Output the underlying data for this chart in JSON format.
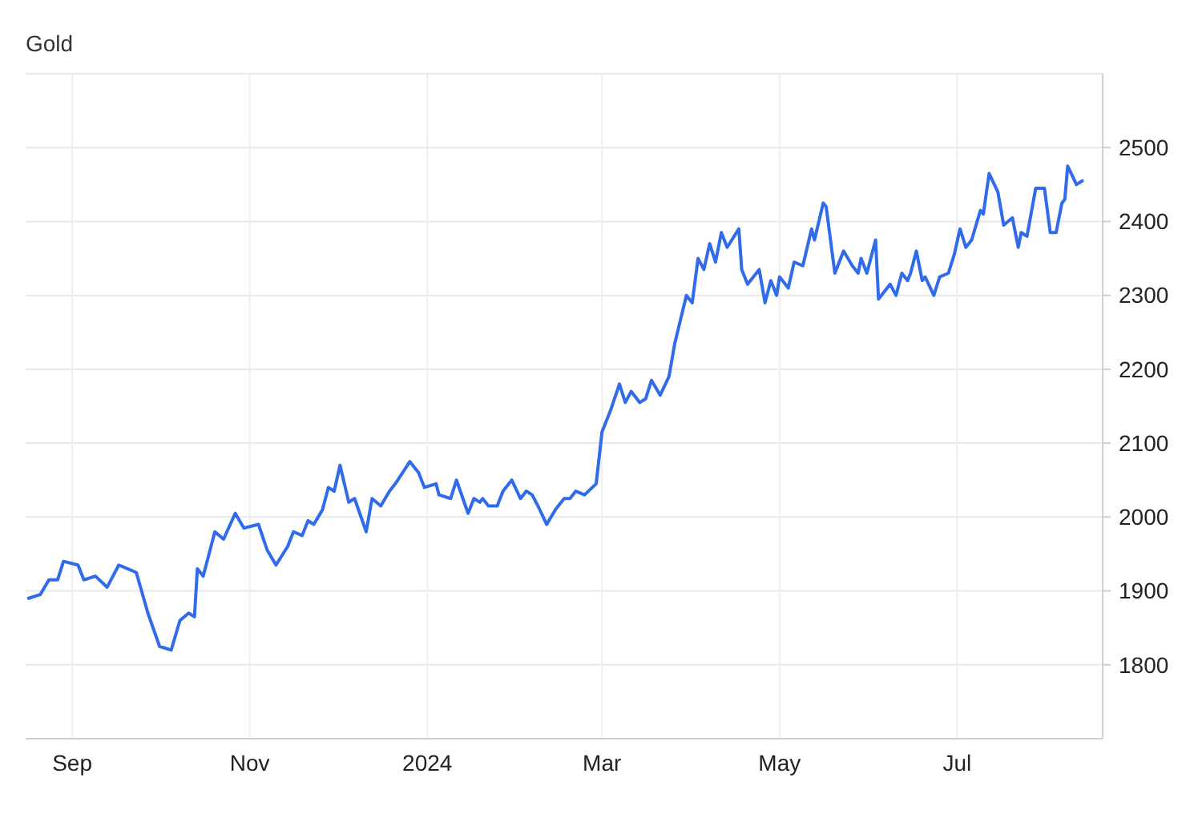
{
  "chart_data": {
    "type": "line",
    "title": "Gold",
    "x": [
      "2023-08-17",
      "2023-08-21",
      "2023-08-24",
      "2023-08-27",
      "2023-08-29",
      "2023-09-03",
      "2023-09-05",
      "2023-09-09",
      "2023-09-13",
      "2023-09-17",
      "2023-09-20",
      "2023-09-23",
      "2023-09-27",
      "2023-10-01",
      "2023-10-05",
      "2023-10-08",
      "2023-10-11",
      "2023-10-13",
      "2023-10-14",
      "2023-10-16",
      "2023-10-20",
      "2023-10-23",
      "2023-10-27",
      "2023-10-30",
      "2023-11-04",
      "2023-11-07",
      "2023-11-10",
      "2023-11-14",
      "2023-11-16",
      "2023-11-19",
      "2023-11-21",
      "2023-11-23",
      "2023-11-26",
      "2023-11-28",
      "2023-11-30",
      "2023-12-02",
      "2023-12-05",
      "2023-12-07",
      "2023-12-11",
      "2023-12-13",
      "2023-12-16",
      "2023-12-19",
      "2023-12-21",
      "2023-12-26",
      "2023-12-29",
      "2023-12-31",
      "2024-01-04",
      "2024-01-05",
      "2024-01-09",
      "2024-01-11",
      "2024-01-15",
      "2024-01-17",
      "2024-01-19",
      "2024-01-20",
      "2024-01-22",
      "2024-01-25",
      "2024-01-27",
      "2024-01-30",
      "2024-02-02",
      "2024-02-04",
      "2024-02-06",
      "2024-02-08",
      "2024-02-11",
      "2024-02-14",
      "2024-02-17",
      "2024-02-19",
      "2024-02-21",
      "2024-02-24",
      "2024-02-28",
      "2024-03-01",
      "2024-03-04",
      "2024-03-07",
      "2024-03-09",
      "2024-03-11",
      "2024-03-14",
      "2024-03-16",
      "2024-03-18",
      "2024-03-21",
      "2024-03-24",
      "2024-03-26",
      "2024-03-30",
      "2024-04-01",
      "2024-04-03",
      "2024-04-05",
      "2024-04-07",
      "2024-04-09",
      "2024-04-11",
      "2024-04-13",
      "2024-04-17",
      "2024-04-18",
      "2024-04-20",
      "2024-04-24",
      "2024-04-26",
      "2024-04-28",
      "2024-04-30",
      "2024-05-01",
      "2024-05-04",
      "2024-05-06",
      "2024-05-09",
      "2024-05-12",
      "2024-05-13",
      "2024-05-16",
      "2024-05-17",
      "2024-05-20",
      "2024-05-23",
      "2024-05-26",
      "2024-05-28",
      "2024-05-29",
      "2024-05-31",
      "2024-06-03",
      "2024-06-04",
      "2024-06-08",
      "2024-06-10",
      "2024-06-12",
      "2024-06-14",
      "2024-06-15",
      "2024-06-17",
      "2024-06-19",
      "2024-06-20",
      "2024-06-23",
      "2024-06-25",
      "2024-06-28",
      "2024-06-30",
      "2024-07-02",
      "2024-07-04",
      "2024-07-06",
      "2024-07-09",
      "2024-07-10",
      "2024-07-12",
      "2024-07-15",
      "2024-07-17",
      "2024-07-20",
      "2024-07-22",
      "2024-07-23",
      "2024-07-25",
      "2024-07-28",
      "2024-07-31",
      "2024-08-02",
      "2024-08-04",
      "2024-08-06",
      "2024-08-07",
      "2024-08-08",
      "2024-08-11",
      "2024-08-13"
    ],
    "series": [
      {
        "color": "#2f6bea",
        "values": [
          1890,
          1895,
          1915,
          1915,
          1940,
          1935,
          1915,
          1920,
          1905,
          1935,
          1930,
          1925,
          1870,
          1825,
          1820,
          1860,
          1870,
          1865,
          1930,
          1920,
          1980,
          1970,
          2005,
          1985,
          1990,
          1955,
          1935,
          1960,
          1980,
          1975,
          1995,
          1990,
          2010,
          2040,
          2035,
          2070,
          2020,
          2025,
          1980,
          2025,
          2015,
          2035,
          2045,
          2075,
          2060,
          2040,
          2045,
          2030,
          2025,
          2050,
          2005,
          2025,
          2020,
          2025,
          2015,
          2015,
          2035,
          2050,
          2025,
          2035,
          2030,
          2015,
          1990,
          2010,
          2025,
          2025,
          2035,
          2030,
          2045,
          2115,
          2145,
          2180,
          2155,
          2170,
          2155,
          2160,
          2185,
          2165,
          2190,
          2235,
          2300,
          2290,
          2350,
          2335,
          2370,
          2345,
          2385,
          2365,
          2390,
          2335,
          2315,
          2335,
          2290,
          2320,
          2300,
          2325,
          2310,
          2345,
          2340,
          2390,
          2375,
          2425,
          2420,
          2330,
          2360,
          2340,
          2330,
          2350,
          2330,
          2375,
          2295,
          2315,
          2300,
          2330,
          2320,
          2330,
          2360,
          2320,
          2325,
          2300,
          2325,
          2330,
          2355,
          2390,
          2365,
          2375,
          2415,
          2410,
          2465,
          2440,
          2395,
          2405,
          2365,
          2385,
          2380,
          2445,
          2445,
          2385,
          2385,
          2425,
          2430,
          2475,
          2450,
          2455
        ]
      }
    ],
    "xlim": [
      "2023-08-16",
      "2024-08-20"
    ],
    "xticks": [
      {
        "value": "2023-09-01",
        "label": "Sep"
      },
      {
        "value": "2023-11-01",
        "label": "Nov"
      },
      {
        "value": "2024-01-01",
        "label": "2024"
      },
      {
        "value": "2024-03-01",
        "label": "Mar"
      },
      {
        "value": "2024-05-01",
        "label": "May"
      },
      {
        "value": "2024-07-01",
        "label": "Jul"
      }
    ],
    "ylim": [
      1700,
      2600
    ],
    "yticks": [
      1800,
      1900,
      2000,
      2100,
      2200,
      2300,
      2400,
      2500
    ],
    "grid": true
  }
}
